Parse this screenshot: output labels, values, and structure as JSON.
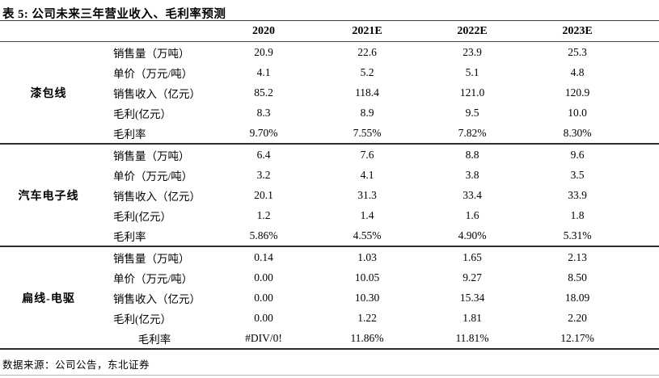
{
  "page": {
    "title": "表 5:  公司未来三年营业收入、毛利率预测",
    "source_note": "数据来源：公司公告，东北证券"
  },
  "table": {
    "columns": [
      "2020",
      "2021E",
      "2022E",
      "2023E"
    ],
    "sections": [
      {
        "name": "漆包线",
        "rows": [
          {
            "label": "销售量（万吨）",
            "values": [
              "20.9",
              "22.6",
              "23.9",
              "25.3"
            ]
          },
          {
            "label": "单价（万元/吨）",
            "values": [
              "4.1",
              "5.2",
              "5.1",
              "4.8"
            ]
          },
          {
            "label": "销售收入（亿元）",
            "values": [
              "85.2",
              "118.4",
              "121.0",
              "120.9"
            ]
          },
          {
            "label": "毛利(亿元）",
            "values": [
              "8.3",
              "8.9",
              "9.5",
              "10.0"
            ]
          },
          {
            "label": "毛利率",
            "values": [
              "9.70%",
              "7.55%",
              "7.82%",
              "8.30%"
            ]
          }
        ]
      },
      {
        "name": "汽车电子线",
        "rows": [
          {
            "label": "销售量（万吨）",
            "values": [
              "6.4",
              "7.6",
              "8.8",
              "9.6"
            ]
          },
          {
            "label": "单价（万元/吨）",
            "values": [
              "3.2",
              "4.1",
              "3.8",
              "3.5"
            ]
          },
          {
            "label": "销售收入（亿元）",
            "values": [
              "20.1",
              "31.3",
              "33.4",
              "33.9"
            ]
          },
          {
            "label": "毛利(亿元）",
            "values": [
              "1.2",
              "1.4",
              "1.6",
              "1.8"
            ]
          },
          {
            "label": "毛利率",
            "values": [
              "5.86%",
              "4.55%",
              "4.90%",
              "5.31%"
            ]
          }
        ]
      },
      {
        "name": "扁线-电驱",
        "rows": [
          {
            "label": "销售量（万吨）",
            "values": [
              "0.14",
              "1.03",
              "1.65",
              "2.13"
            ]
          },
          {
            "label": "单价（万元/吨）",
            "values": [
              "0.00",
              "10.05",
              "9.27",
              "8.50"
            ]
          },
          {
            "label": "销售收入（亿元）",
            "values": [
              "0.00",
              "10.30",
              "15.34",
              "18.09"
            ]
          },
          {
            "label": "毛利(亿元）",
            "values": [
              "0.00",
              "1.22",
              "1.81",
              "2.20"
            ]
          },
          {
            "label": "毛利率",
            "values": [
              "#DIV/0!",
              "11.86%",
              "11.81%",
              "12.17%"
            ],
            "label_align": "center"
          }
        ]
      }
    ]
  }
}
